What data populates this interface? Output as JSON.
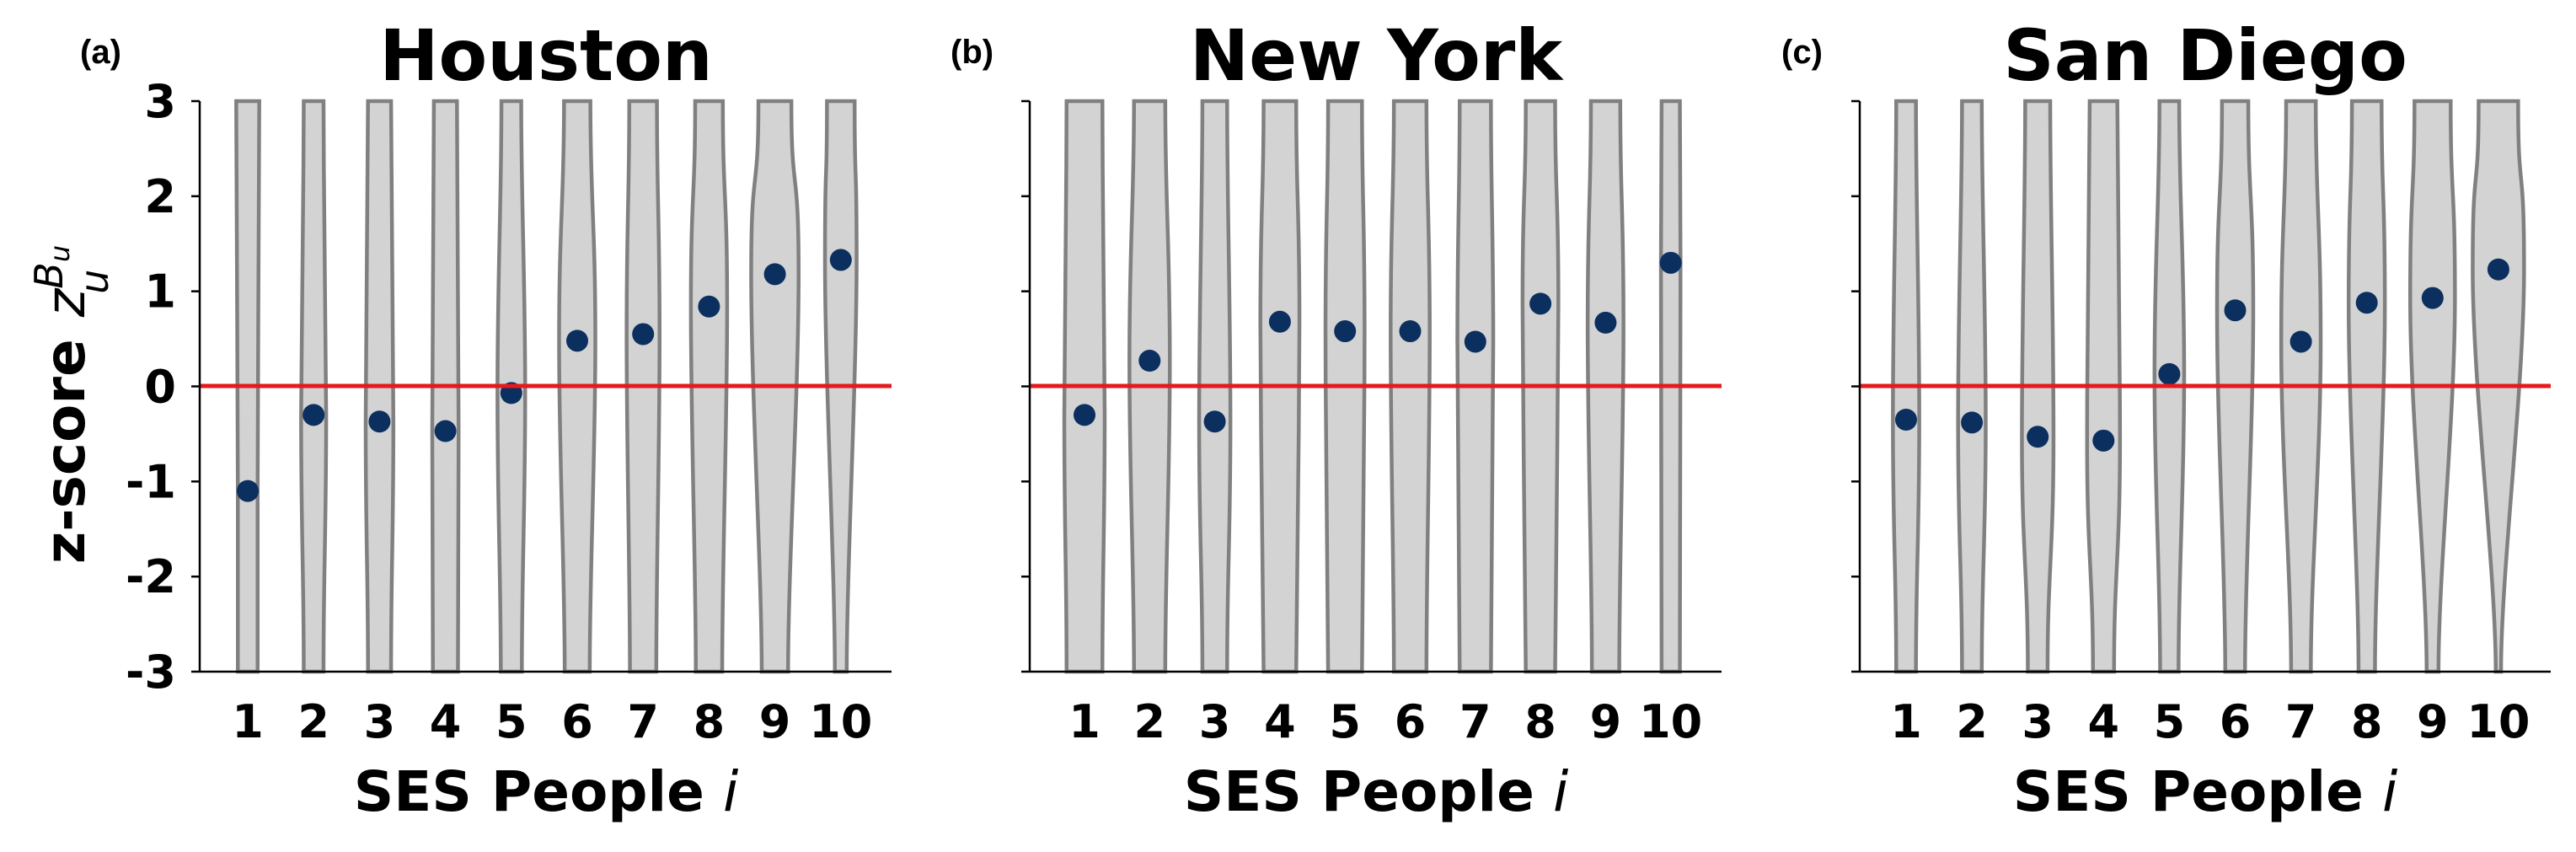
{
  "chart_data": [
    {
      "type": "violin",
      "panel_label": "(a)",
      "title": "Houston",
      "xlabel": "SES People",
      "xlabel_var": "i",
      "ylabel": "z-score",
      "ylabel_var": "z",
      "ylabel_sup": "B",
      "ylabel_sup_sub": "u",
      "ylabel_sub": "u",
      "categories": [
        "1",
        "2",
        "3",
        "4",
        "5",
        "6",
        "7",
        "8",
        "9",
        "10"
      ],
      "means": [
        -1.1,
        -0.3,
        -0.37,
        -0.47,
        -0.07,
        0.48,
        0.55,
        0.84,
        1.18,
        1.33
      ],
      "widths_top": [
        0.35,
        0.3,
        0.35,
        0.35,
        0.3,
        0.4,
        0.42,
        0.42,
        0.5,
        0.42
      ],
      "widths_mid": [
        0.3,
        0.38,
        0.42,
        0.4,
        0.42,
        0.55,
        0.5,
        0.55,
        0.72,
        0.48
      ],
      "widths_bot": [
        0.3,
        0.3,
        0.35,
        0.38,
        0.32,
        0.38,
        0.4,
        0.4,
        0.4,
        0.18
      ],
      "ylim": [
        -3,
        3
      ],
      "yticks": [
        "-3",
        "-2",
        "-1",
        "0",
        "1",
        "2",
        "3"
      ],
      "reference_line": 0
    },
    {
      "type": "violin",
      "panel_label": "(b)",
      "title": "New York",
      "xlabel": "SES People",
      "xlabel_var": "i",
      "categories": [
        "1",
        "2",
        "3",
        "4",
        "5",
        "6",
        "7",
        "8",
        "9",
        "10"
      ],
      "means": [
        -0.3,
        0.27,
        -0.37,
        0.68,
        0.58,
        0.58,
        0.47,
        0.87,
        0.67,
        1.3
      ],
      "widths_top": [
        0.55,
        0.48,
        0.38,
        0.5,
        0.52,
        0.5,
        0.48,
        0.45,
        0.45,
        0.28
      ],
      "widths_mid": [
        0.62,
        0.62,
        0.48,
        0.6,
        0.6,
        0.6,
        0.55,
        0.55,
        0.55,
        0.3
      ],
      "widths_bot": [
        0.55,
        0.48,
        0.38,
        0.5,
        0.52,
        0.5,
        0.48,
        0.45,
        0.42,
        0.28
      ],
      "ylim": [
        -3,
        3
      ],
      "reference_line": 0
    },
    {
      "type": "violin",
      "panel_label": "(c)",
      "title": "San Diego",
      "xlabel": "SES People",
      "xlabel_var": "i",
      "categories": [
        "1",
        "2",
        "3",
        "4",
        "5",
        "6",
        "7",
        "8",
        "9",
        "10"
      ],
      "means": [
        -0.35,
        -0.38,
        -0.53,
        -0.57,
        0.13,
        0.8,
        0.47,
        0.88,
        0.93,
        1.23
      ],
      "widths_top": [
        0.3,
        0.3,
        0.38,
        0.42,
        0.3,
        0.4,
        0.45,
        0.45,
        0.55,
        0.6
      ],
      "widths_mid": [
        0.4,
        0.42,
        0.48,
        0.5,
        0.45,
        0.55,
        0.6,
        0.55,
        0.68,
        0.78
      ],
      "widths_bot": [
        0.3,
        0.3,
        0.3,
        0.32,
        0.28,
        0.3,
        0.3,
        0.25,
        0.18,
        0.08
      ],
      "ylim": [
        -3,
        3
      ],
      "reference_line": 0
    }
  ],
  "colors": {
    "violin_fill": "#d3d3d3",
    "violin_edge": "#808080",
    "point": "#0b2f5e",
    "reference_line": "#e41a1c"
  }
}
